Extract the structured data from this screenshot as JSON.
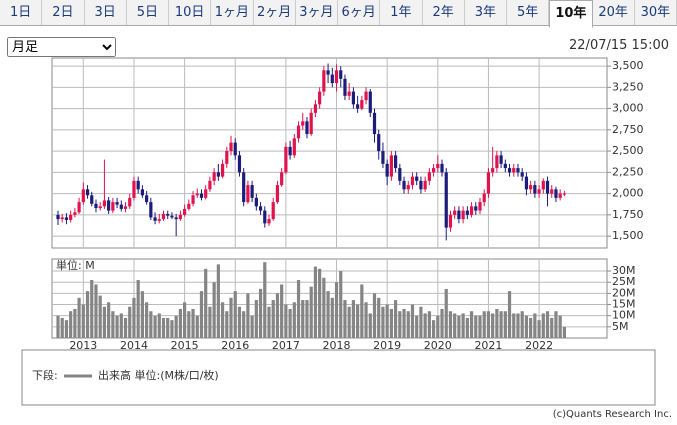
{
  "tabs": [
    "1日",
    "2日",
    "3日",
    "5日",
    "10日",
    "1ヶ月",
    "2ヶ月",
    "3ヶ月",
    "6ヶ月",
    "1年",
    "2年",
    "3年",
    "5年",
    "10年",
    "20年",
    "30年"
  ],
  "active_tab_index": 13,
  "period_select": "月足",
  "timestamp": "22/07/15 15:00",
  "footer": "(c)Quants Research Inc.",
  "legend_prefix": "下段:",
  "chart_data": [
    {
      "type": "candlestick",
      "up_color": "#e0134f",
      "down_color": "#1c1c7a",
      "grid": true,
      "ylim": [
        1360,
        3595
      ],
      "yticks": [
        {
          "value": 1500,
          "label": "1,500"
        },
        {
          "value": 1750,
          "label": "1,750"
        },
        {
          "value": 2000,
          "label": "2,000"
        },
        {
          "value": 2250,
          "label": "2,250"
        },
        {
          "value": 2500,
          "label": "2,500"
        },
        {
          "value": 2750,
          "label": "2,750"
        },
        {
          "value": 3000,
          "label": "3,000"
        },
        {
          "value": 3250,
          "label": "3,250"
        },
        {
          "value": 3500,
          "label": "3,500"
        }
      ],
      "open": [
        1750,
        1700,
        1720,
        1690,
        1750,
        1780,
        1900,
        2050,
        1980,
        1880,
        1830,
        1850,
        1920,
        1800,
        1900,
        1870,
        1820,
        1850,
        1950,
        2150,
        2050,
        1980,
        1900,
        1720,
        1680,
        1700,
        1760,
        1740,
        1720,
        1700,
        1750,
        1820,
        1880,
        1980,
        2000,
        1950,
        2050,
        2150,
        2250,
        2200,
        2350,
        2500,
        2600,
        2450,
        2250,
        1900,
        2100,
        1950,
        1850,
        1800,
        1650,
        1700,
        1900,
        2100,
        2250,
        2550,
        2450,
        2650,
        2800,
        2850,
        2700,
        2950,
        3050,
        3200,
        3450,
        3400,
        3300,
        3450,
        3350,
        3150,
        3200,
        3050,
        3000,
        3100,
        3200,
        2950,
        2700,
        2500,
        2350,
        2200,
        2450,
        2300,
        2150,
        2050,
        2100,
        2200,
        2150,
        2050,
        2150,
        2250,
        2300,
        2350,
        2250,
        1600,
        1750,
        1800,
        1700,
        1800,
        1750,
        1850,
        1800,
        1900,
        2000,
        2250,
        2300,
        2450,
        2350,
        2300,
        2250,
        2300,
        2250,
        2200,
        2050,
        2100,
        2000,
        2050,
        2150,
        2000,
        2050,
        1950,
        2000
      ],
      "high": [
        1800,
        1760,
        1770,
        1800,
        1830,
        1950,
        2130,
        2100,
        2020,
        1930,
        1900,
        2400,
        1960,
        1950,
        1950,
        1920,
        1900,
        2000,
        2200,
        2200,
        2100,
        2030,
        1950,
        1780,
        1760,
        1800,
        1800,
        1780,
        1760,
        1800,
        1870,
        1930,
        2030,
        2060,
        2050,
        2100,
        2200,
        2300,
        2350,
        2400,
        2550,
        2680,
        2650,
        2500,
        2300,
        2150,
        2150,
        2000,
        1900,
        1850,
        1750,
        1950,
        2150,
        2300,
        2600,
        2620,
        2700,
        2850,
        2950,
        2900,
        3000,
        3100,
        3250,
        3500,
        3530,
        3480,
        3520,
        3500,
        3400,
        3300,
        3250,
        3150,
        3150,
        3250,
        3230,
        3000,
        2750,
        2600,
        2400,
        2500,
        2500,
        2350,
        2200,
        2150,
        2250,
        2250,
        2200,
        2200,
        2300,
        2350,
        2450,
        2400,
        2300,
        1800,
        1850,
        1850,
        1850,
        1850,
        1900,
        1900,
        1950,
        2050,
        2300,
        2550,
        2500,
        2500,
        2400,
        2350,
        2350,
        2350,
        2300,
        2250,
        2150,
        2150,
        2100,
        2180,
        2200,
        2100,
        2080,
        2050,
        2030
      ],
      "low": [
        1630,
        1660,
        1640,
        1660,
        1720,
        1760,
        1870,
        1940,
        1850,
        1780,
        1800,
        1820,
        1760,
        1770,
        1830,
        1790,
        1780,
        1820,
        1920,
        2000,
        1950,
        1870,
        1690,
        1640,
        1650,
        1680,
        1700,
        1700,
        1500,
        1680,
        1730,
        1800,
        1850,
        1950,
        1920,
        1930,
        2020,
        2100,
        2150,
        2180,
        2300,
        2450,
        2400,
        2200,
        1850,
        1880,
        1900,
        1800,
        1750,
        1600,
        1620,
        1680,
        1880,
        2080,
        2230,
        2400,
        2420,
        2600,
        2750,
        2650,
        2680,
        2900,
        3000,
        3150,
        3300,
        3250,
        3200,
        3250,
        3100,
        3100,
        3000,
        2950,
        2980,
        3050,
        2900,
        2600,
        2400,
        2300,
        2100,
        2150,
        2250,
        2100,
        2000,
        2000,
        2050,
        2100,
        2000,
        2020,
        2100,
        2200,
        2250,
        2200,
        1450,
        1550,
        1700,
        1650,
        1650,
        1700,
        1720,
        1750,
        1760,
        1850,
        1950,
        2200,
        2250,
        2300,
        2250,
        2200,
        2200,
        2200,
        2150,
        1980,
        2000,
        1950,
        1950,
        2000,
        1850,
        1950,
        1900,
        1920,
        1970
      ],
      "close": [
        1700,
        1720,
        1690,
        1750,
        1780,
        1900,
        2050,
        1980,
        1880,
        1830,
        1850,
        1920,
        1800,
        1900,
        1870,
        1820,
        1850,
        1950,
        2150,
        2050,
        1980,
        1900,
        1720,
        1680,
        1700,
        1760,
        1740,
        1720,
        1700,
        1750,
        1820,
        1880,
        1980,
        2000,
        1950,
        2050,
        2150,
        2250,
        2200,
        2350,
        2500,
        2600,
        2450,
        2250,
        1900,
        2100,
        1950,
        1850,
        1800,
        1650,
        1700,
        1900,
        2100,
        2250,
        2550,
        2450,
        2650,
        2800,
        2850,
        2700,
        2950,
        3050,
        3200,
        3450,
        3400,
        3300,
        3450,
        3350,
        3150,
        3200,
        3050,
        3000,
        3100,
        3200,
        2950,
        2700,
        2500,
        2350,
        2200,
        2450,
        2300,
        2150,
        2050,
        2100,
        2200,
        2150,
        2050,
        2150,
        2250,
        2300,
        2350,
        2250,
        1600,
        1750,
        1800,
        1700,
        1800,
        1750,
        1850,
        1800,
        1900,
        2000,
        2250,
        2300,
        2450,
        2350,
        2300,
        2250,
        2300,
        2250,
        2200,
        2050,
        2100,
        2000,
        2050,
        2150,
        2000,
        2050,
        1950,
        2000,
        2000
      ]
    },
    {
      "type": "bar",
      "unit_label": "単位: M",
      "grid": true,
      "ylim": [
        0,
        35.4
      ],
      "yticks": [
        {
          "value": 5,
          "label": "5M"
        },
        {
          "value": 10,
          "label": "10M"
        },
        {
          "value": 15,
          "label": "15M"
        },
        {
          "value": 20,
          "label": "20M"
        },
        {
          "value": 25,
          "label": "25M"
        },
        {
          "value": 30,
          "label": "30M"
        }
      ],
      "categories": [
        null,
        null,
        null,
        null,
        null,
        null,
        "2013",
        null,
        null,
        null,
        null,
        null,
        null,
        null,
        null,
        null,
        null,
        null,
        "2014",
        null,
        null,
        null,
        null,
        null,
        null,
        null,
        null,
        null,
        null,
        null,
        "2015",
        null,
        null,
        null,
        null,
        null,
        null,
        null,
        null,
        null,
        null,
        null,
        "2016",
        null,
        null,
        null,
        null,
        null,
        null,
        null,
        null,
        null,
        null,
        null,
        "2017",
        null,
        null,
        null,
        null,
        null,
        null,
        null,
        null,
        null,
        null,
        null,
        "2018",
        null,
        null,
        null,
        null,
        null,
        null,
        null,
        null,
        null,
        null,
        null,
        "2019",
        null,
        null,
        null,
        null,
        null,
        null,
        null,
        null,
        null,
        null,
        null,
        "2020",
        null,
        null,
        null,
        null,
        null,
        null,
        null,
        null,
        null,
        null,
        null,
        "2021",
        null,
        null,
        null,
        null,
        null,
        null,
        null,
        null,
        null,
        null,
        null,
        "2022",
        null,
        null,
        null,
        null,
        null,
        null
      ],
      "series": [
        {
          "name": "出来高 単位:(M株/口/枚)",
          "color": "#858585",
          "values": [
            10,
            9,
            8,
            12,
            13,
            18,
            15,
            21,
            26,
            24,
            19,
            14,
            16,
            12,
            10,
            11,
            9,
            14,
            18,
            26,
            21,
            16,
            12,
            10,
            11,
            9,
            9,
            8,
            10,
            13,
            16,
            12,
            13,
            10,
            21,
            31,
            14,
            25,
            33,
            16,
            12,
            18,
            21,
            14,
            12,
            20,
            10,
            17,
            22,
            34,
            14,
            17,
            20,
            24,
            15,
            13,
            16,
            26,
            17,
            17,
            23,
            32,
            31,
            27,
            21,
            18,
            25,
            30,
            17,
            14,
            17,
            15,
            24,
            16,
            11,
            20,
            18,
            14,
            15,
            13,
            17,
            12,
            13,
            12,
            15,
            10,
            14,
            11,
            12,
            8,
            10,
            13,
            22,
            12,
            11,
            10,
            11,
            9,
            12,
            10,
            10,
            12,
            12,
            11,
            13,
            12,
            12,
            21,
            11,
            11,
            12,
            10,
            9,
            11,
            8,
            11,
            12,
            9,
            12,
            10,
            5
          ]
        }
      ]
    }
  ]
}
